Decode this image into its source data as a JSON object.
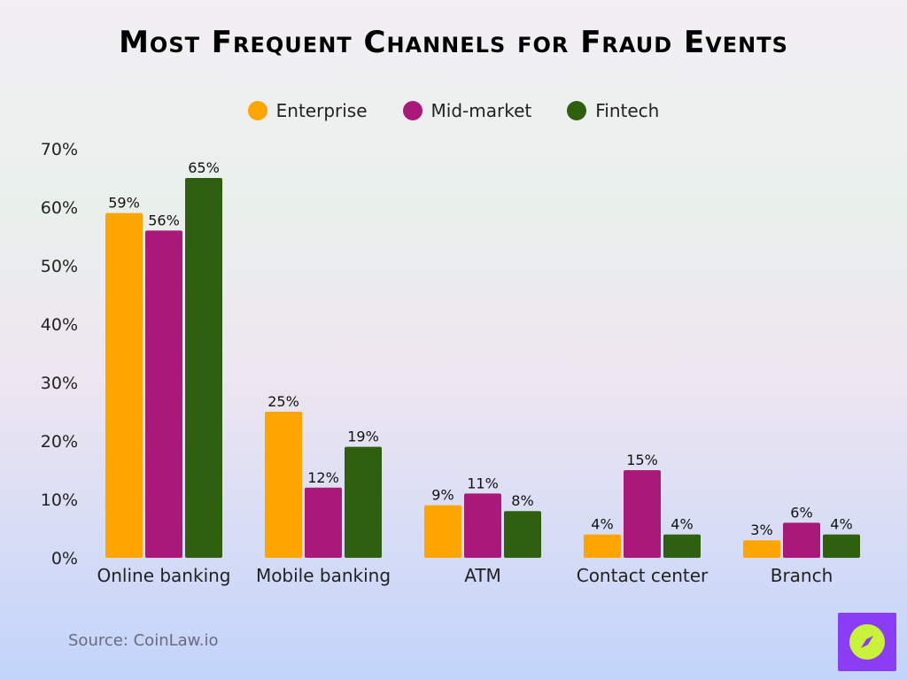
{
  "chart_data": {
    "type": "bar",
    "title": "Most Frequent Channels for Fraud Events",
    "categories": [
      "Online banking",
      "Mobile banking",
      "ATM",
      "Contact center",
      "Branch"
    ],
    "series": [
      {
        "name": "Enterprise",
        "color": "#ffa500",
        "values": [
          59,
          25,
          9,
          4,
          3
        ]
      },
      {
        "name": "Mid-market",
        "color": "#a8197a",
        "values": [
          56,
          12,
          11,
          15,
          6
        ]
      },
      {
        "name": "Fintech",
        "color": "#2e6010",
        "values": [
          65,
          19,
          8,
          4,
          4
        ]
      }
    ],
    "ylim": [
      0,
      70
    ],
    "yticks": [
      "0%",
      "10%",
      "20%",
      "30%",
      "40%",
      "50%",
      "60%",
      "70%"
    ],
    "value_suffix": "%",
    "grid": false,
    "legend_position": "top-center"
  },
  "source": "Source: CoinLaw.io",
  "logo_icon": "compass-icon"
}
